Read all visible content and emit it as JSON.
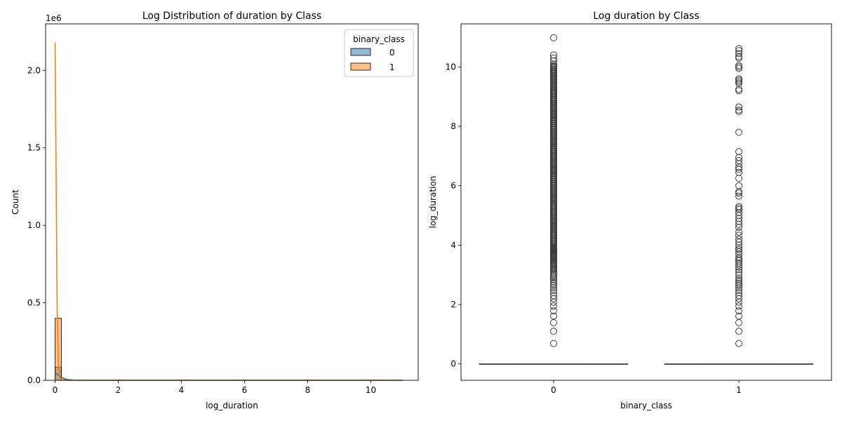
{
  "chart_data": [
    {
      "type": "histogram",
      "title": "Log Distribution of duration by Class",
      "xlabel": "log_duration",
      "ylabel": "Count",
      "y_offset_text": "1e6",
      "xlim": [
        -0.3,
        11.5
      ],
      "ylim": [
        0,
        2.3
      ],
      "y_unit_multiplier": 1000000,
      "xticks": [
        0,
        2,
        4,
        6,
        8,
        10
      ],
      "xtick_labels": [
        "0",
        "2",
        "4",
        "6",
        "8",
        "10"
      ],
      "yticks": [
        0,
        0.5,
        1.0,
        1.5,
        2.0
      ],
      "ytick_labels": [
        "0.0",
        "0.5",
        "1.0",
        "1.5",
        "2.0"
      ],
      "bin_width": 0.2,
      "legend": {
        "title": "binary_class",
        "placement": "top-right",
        "entries": [
          {
            "label": "0"
          },
          {
            "label": "1"
          }
        ]
      },
      "series": [
        {
          "name": "0",
          "color": "#1f77b4",
          "bins": [
            {
              "x0": 0.0,
              "x1": 0.2,
              "count": 0.085
            },
            {
              "x0": 0.2,
              "x1": 0.4,
              "count": 0.004
            }
          ],
          "kde": [
            [
              0.0,
              0.045
            ],
            [
              0.1,
              0.035
            ],
            [
              0.2,
              0.02
            ],
            [
              0.3,
              0.009
            ],
            [
              0.45,
              0.003
            ],
            [
              0.6,
              0.0015
            ],
            [
              1,
              0.001
            ],
            [
              3,
              0.001
            ],
            [
              6,
              0.001
            ],
            [
              9,
              0.001
            ],
            [
              11,
              0.001
            ]
          ]
        },
        {
          "name": "1",
          "color": "#ff7f0e",
          "bins": [
            {
              "x0": 0.0,
              "x1": 0.2,
              "count": 0.4
            }
          ],
          "kde": [
            [
              0.0,
              2.18
            ],
            [
              0.03,
              1.4
            ],
            [
              0.06,
              0.55
            ],
            [
              0.1,
              0.12
            ],
            [
              0.14,
              0.02
            ],
            [
              0.2,
              0.003
            ],
            [
              0.4,
              0.0
            ],
            [
              11,
              0.0
            ]
          ]
        }
      ]
    },
    {
      "type": "box",
      "title": "Log duration by Class",
      "xlabel": "binary_class",
      "ylabel": "log_duration",
      "categories": [
        "0",
        "1"
      ],
      "ylim": [
        -0.55,
        11.45
      ],
      "yticks": [
        0,
        2,
        4,
        6,
        8,
        10
      ],
      "ytick_labels": [
        "0",
        "2",
        "4",
        "6",
        "8",
        "10"
      ],
      "boxes": [
        {
          "category": "0",
          "q1": 0,
          "median": 0,
          "q3": 0,
          "whisker_low": 0,
          "whisker_high": 0,
          "outliers": [
            0.69,
            1.1,
            1.39,
            1.61,
            1.79,
            1.95,
            2.08,
            2.2,
            2.3,
            2.4,
            2.48,
            2.56,
            2.64,
            2.71,
            2.77,
            2.83,
            2.89,
            2.94,
            3.0,
            3.04,
            3.09,
            3.14,
            3.18,
            3.22,
            3.26,
            3.3,
            3.33,
            3.37,
            3.4,
            3.43,
            3.47,
            3.5,
            3.53,
            3.56,
            3.58,
            3.61,
            3.64,
            3.66,
            3.69,
            3.71,
            3.74,
            3.76,
            3.78,
            3.81,
            3.83,
            3.85,
            3.87,
            3.89,
            3.91,
            3.93,
            10.05,
            10.1,
            10.2,
            10.3,
            10.4,
            10.98
          ],
          "outlier_fill_range": [
            3.93,
            10.05
          ]
        },
        {
          "category": "1",
          "q1": 0,
          "median": 0,
          "q3": 0,
          "whisker_low": 0,
          "whisker_high": 0,
          "outliers": [
            0.69,
            1.1,
            1.39,
            1.61,
            1.79,
            1.95,
            2.08,
            2.2,
            2.3,
            2.4,
            2.48,
            2.56,
            2.64,
            2.71,
            2.77,
            2.83,
            2.89,
            3.0,
            3.09,
            3.18,
            3.26,
            3.33,
            3.4,
            3.47,
            3.53,
            3.58,
            3.69,
            3.78,
            3.85,
            3.91,
            4.0,
            4.1,
            4.2,
            4.33,
            4.44,
            4.6,
            4.7,
            4.8,
            4.9,
            5.0,
            5.1,
            5.2,
            5.25,
            5.3,
            5.65,
            5.75,
            5.8,
            6.0,
            6.25,
            6.45,
            6.55,
            6.62,
            6.75,
            6.85,
            6.95,
            7.15,
            7.8,
            8.5,
            8.55,
            8.65,
            9.2,
            9.25,
            9.45,
            9.5,
            9.55,
            9.6,
            9.95,
            10.0,
            10.05,
            10.3,
            10.35,
            10.45,
            10.55,
            10.62
          ]
        }
      ]
    }
  ]
}
